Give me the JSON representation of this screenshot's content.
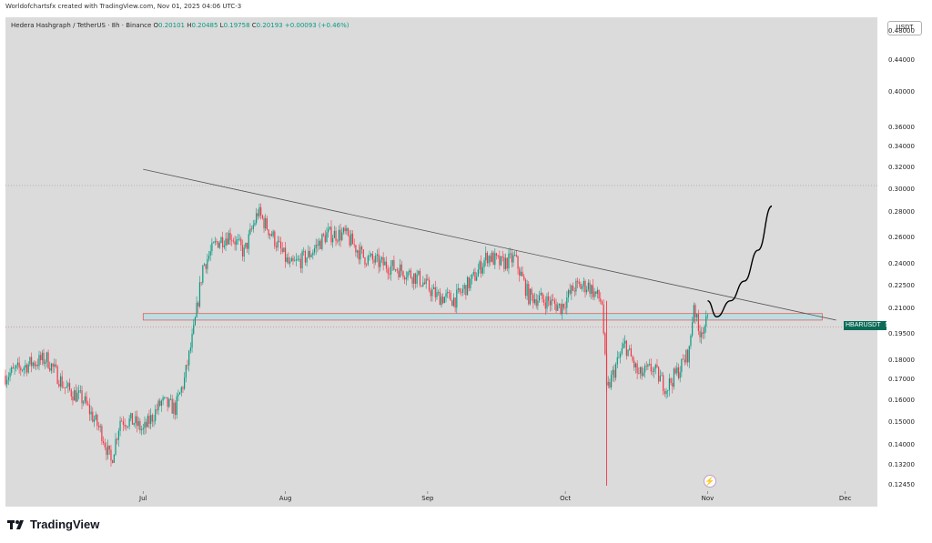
{
  "header": {
    "attribution": "Worldofchartsfx created with TradingView.com, Nov 01, 2025 04:06 UTC-3"
  },
  "legend": {
    "symbol": "Hedera Hashgraph / TetherUS · 8h · Binance",
    "open_label": "O",
    "open": "0.20101",
    "high_label": "H",
    "high": "0.20485",
    "low_label": "L",
    "low": "0.19758",
    "close_label": "C",
    "close": "0.20193",
    "change": "+0.00093 (+0.46%)"
  },
  "price_axis": {
    "unit": "USDT",
    "ticks": [
      "0.48000",
      "0.44000",
      "0.40000",
      "0.36000",
      "0.34000",
      "0.32000",
      "0.30000",
      "0.28000",
      "0.26000",
      "0.24000",
      "0.22500",
      "0.21000",
      "0.19500",
      "0.18000",
      "0.17000",
      "0.16000",
      "0.15000",
      "0.14000",
      "0.13200",
      "0.12450"
    ]
  },
  "price_tag": {
    "symbol": "HBARUSDT",
    "countdown": "53:34"
  },
  "time_axis": {
    "labels": [
      "Jul",
      "Aug",
      "Sep",
      "Oct",
      "Nov",
      "Dec"
    ]
  },
  "brand": {
    "name": "TradingView"
  },
  "colors": {
    "up": "#089981",
    "down": "#f23645",
    "tag": "#0b6b57",
    "zone_fill": "#b8dde0",
    "zone_border": "#e05050"
  },
  "chart_data": {
    "type": "candlestick",
    "symbol": "HBARUSDT",
    "interval": "8h",
    "y_scale": "log",
    "ylim": [
      0.122,
      0.5
    ],
    "xlim": [
      "2025-06-01",
      "2025-12-08"
    ],
    "series_approx_close": [
      {
        "x": "2025-06-01",
        "y": 0.172
      },
      {
        "x": "2025-06-06",
        "y": 0.178
      },
      {
        "x": "2025-06-10",
        "y": 0.181
      },
      {
        "x": "2025-06-14",
        "y": 0.166
      },
      {
        "x": "2025-06-18",
        "y": 0.16
      },
      {
        "x": "2025-06-22",
        "y": 0.145
      },
      {
        "x": "2025-06-24",
        "y": 0.133
      },
      {
        "x": "2025-06-26",
        "y": 0.151
      },
      {
        "x": "2025-06-29",
        "y": 0.15
      },
      {
        "x": "2025-07-01",
        "y": 0.146
      },
      {
        "x": "2025-07-05",
        "y": 0.159
      },
      {
        "x": "2025-07-08",
        "y": 0.156
      },
      {
        "x": "2025-07-10",
        "y": 0.17
      },
      {
        "x": "2025-07-12",
        "y": 0.196
      },
      {
        "x": "2025-07-14",
        "y": 0.238
      },
      {
        "x": "2025-07-17",
        "y": 0.256
      },
      {
        "x": "2025-07-20",
        "y": 0.262
      },
      {
        "x": "2025-07-23",
        "y": 0.248
      },
      {
        "x": "2025-07-26",
        "y": 0.28
      },
      {
        "x": "2025-07-29",
        "y": 0.262
      },
      {
        "x": "2025-08-02",
        "y": 0.238
      },
      {
        "x": "2025-08-06",
        "y": 0.246
      },
      {
        "x": "2025-08-10",
        "y": 0.262
      },
      {
        "x": "2025-08-14",
        "y": 0.262
      },
      {
        "x": "2025-08-18",
        "y": 0.245
      },
      {
        "x": "2025-08-22",
        "y": 0.24
      },
      {
        "x": "2025-08-26",
        "y": 0.236
      },
      {
        "x": "2025-08-30",
        "y": 0.23
      },
      {
        "x": "2025-09-03",
        "y": 0.218
      },
      {
        "x": "2025-09-07",
        "y": 0.216
      },
      {
        "x": "2025-09-11",
        "y": 0.23
      },
      {
        "x": "2025-09-14",
        "y": 0.246
      },
      {
        "x": "2025-09-17",
        "y": 0.24
      },
      {
        "x": "2025-09-20",
        "y": 0.244
      },
      {
        "x": "2025-09-23",
        "y": 0.218
      },
      {
        "x": "2025-09-27",
        "y": 0.215
      },
      {
        "x": "2025-09-30",
        "y": 0.211
      },
      {
        "x": "2025-10-03",
        "y": 0.224
      },
      {
        "x": "2025-10-06",
        "y": 0.225
      },
      {
        "x": "2025-10-09",
        "y": 0.214
      },
      {
        "x": "2025-10-10",
        "y": 0.164
      },
      {
        "x": "2025-10-12",
        "y": 0.177
      },
      {
        "x": "2025-10-14",
        "y": 0.189
      },
      {
        "x": "2025-10-17",
        "y": 0.172
      },
      {
        "x": "2025-10-20",
        "y": 0.176
      },
      {
        "x": "2025-10-23",
        "y": 0.166
      },
      {
        "x": "2025-10-26",
        "y": 0.176
      },
      {
        "x": "2025-10-28",
        "y": 0.185
      },
      {
        "x": "2025-10-29",
        "y": 0.214
      },
      {
        "x": "2025-10-30",
        "y": 0.196
      },
      {
        "x": "2025-11-01",
        "y": 0.2019
      }
    ],
    "lows_marked": [
      {
        "x": "2025-10-10",
        "y": 0.124
      }
    ],
    "annotations": {
      "descending_trendline": {
        "from": {
          "x": "2025-07-01",
          "y": 0.318
        },
        "to": {
          "x": "2025-11-29",
          "y": 0.203
        }
      },
      "support_zone": {
        "x0": "2025-07-01",
        "x1": "2025-11-26",
        "y_low": 0.203,
        "y_high": 0.207
      },
      "horizontal_level_upper": 0.303,
      "horizontal_level_lower": 0.199,
      "projection_path": [
        {
          "x": "2025-11-01",
          "y": 0.215
        },
        {
          "x": "2025-11-03",
          "y": 0.205
        },
        {
          "x": "2025-11-06",
          "y": 0.215
        },
        {
          "x": "2025-11-09",
          "y": 0.228
        },
        {
          "x": "2025-11-12",
          "y": 0.25
        },
        {
          "x": "2025-11-15",
          "y": 0.285
        }
      ]
    },
    "last_price": 0.20193
  }
}
